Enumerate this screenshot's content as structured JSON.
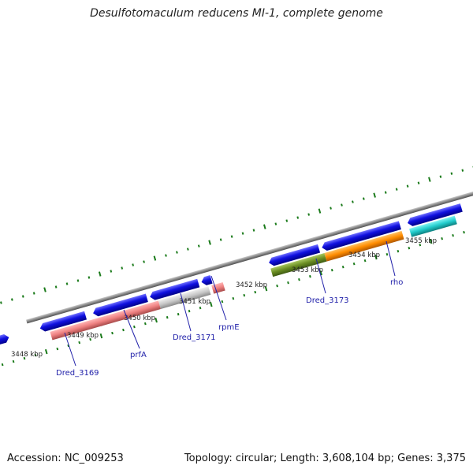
{
  "title": "Desulfotomaculum reducens MI-1, complete genome",
  "footer": {
    "accession": "Accession: NC_009253",
    "summary": "Topology: circular; Length: 3,608,104 bp; Genes: 3,375"
  },
  "ruler": {
    "ticks": [
      "3448 kbp",
      "3449 kbp",
      "3450 kbp",
      "3451 kbp",
      "3452 kbp",
      "3453 kbp",
      "3454 kbp",
      "3455 kbp"
    ]
  },
  "genes": [
    {
      "name": "Dred_3169"
    },
    {
      "name": "prfA"
    },
    {
      "name": "Dred_3171"
    },
    {
      "name": "rpmE"
    },
    {
      "name": "Dred_3173"
    },
    {
      "name": "rho"
    }
  ],
  "colors": {
    "backbone": "#888888",
    "cds": "#1010e0",
    "salmon": "#ee8080",
    "grey": "#c8c8c8",
    "olive": "#6b8e23",
    "orange": "#ff8c00",
    "cyan": "#22cccc",
    "tick": "#1a7a1a"
  }
}
